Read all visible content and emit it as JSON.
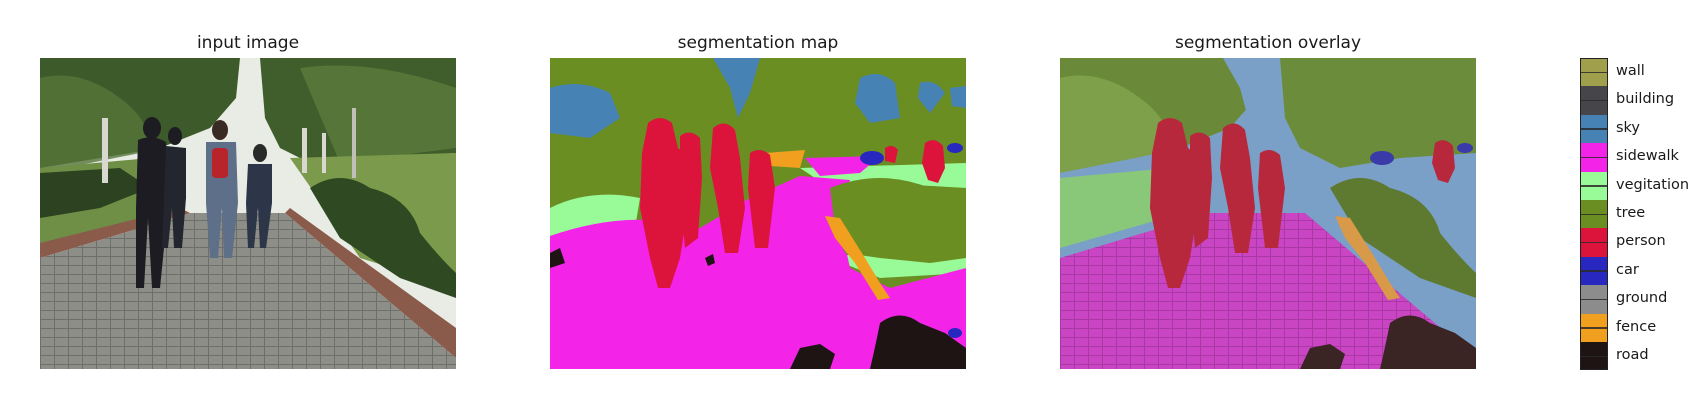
{
  "panels": {
    "input_title": "input image",
    "map_title": "segmentation map",
    "overlay_title": "segmentation overlay"
  },
  "legend": [
    {
      "label": "wall",
      "color": "#a0a04c"
    },
    {
      "label": "building",
      "color": "#46464a"
    },
    {
      "label": "sky",
      "color": "#4682b4"
    },
    {
      "label": "sidewalk",
      "color": "#f423e8"
    },
    {
      "label": "vegitation",
      "color": "#98fb98"
    },
    {
      "label": "tree",
      "color": "#6b8e23"
    },
    {
      "label": "person",
      "color": "#dc143c"
    },
    {
      "label": "car",
      "color": "#2828c0"
    },
    {
      "label": "ground",
      "color": "#8c8c8c"
    },
    {
      "label": "fence",
      "color": "#f0a01e"
    },
    {
      "label": "road",
      "color": "#1e1414"
    }
  ]
}
